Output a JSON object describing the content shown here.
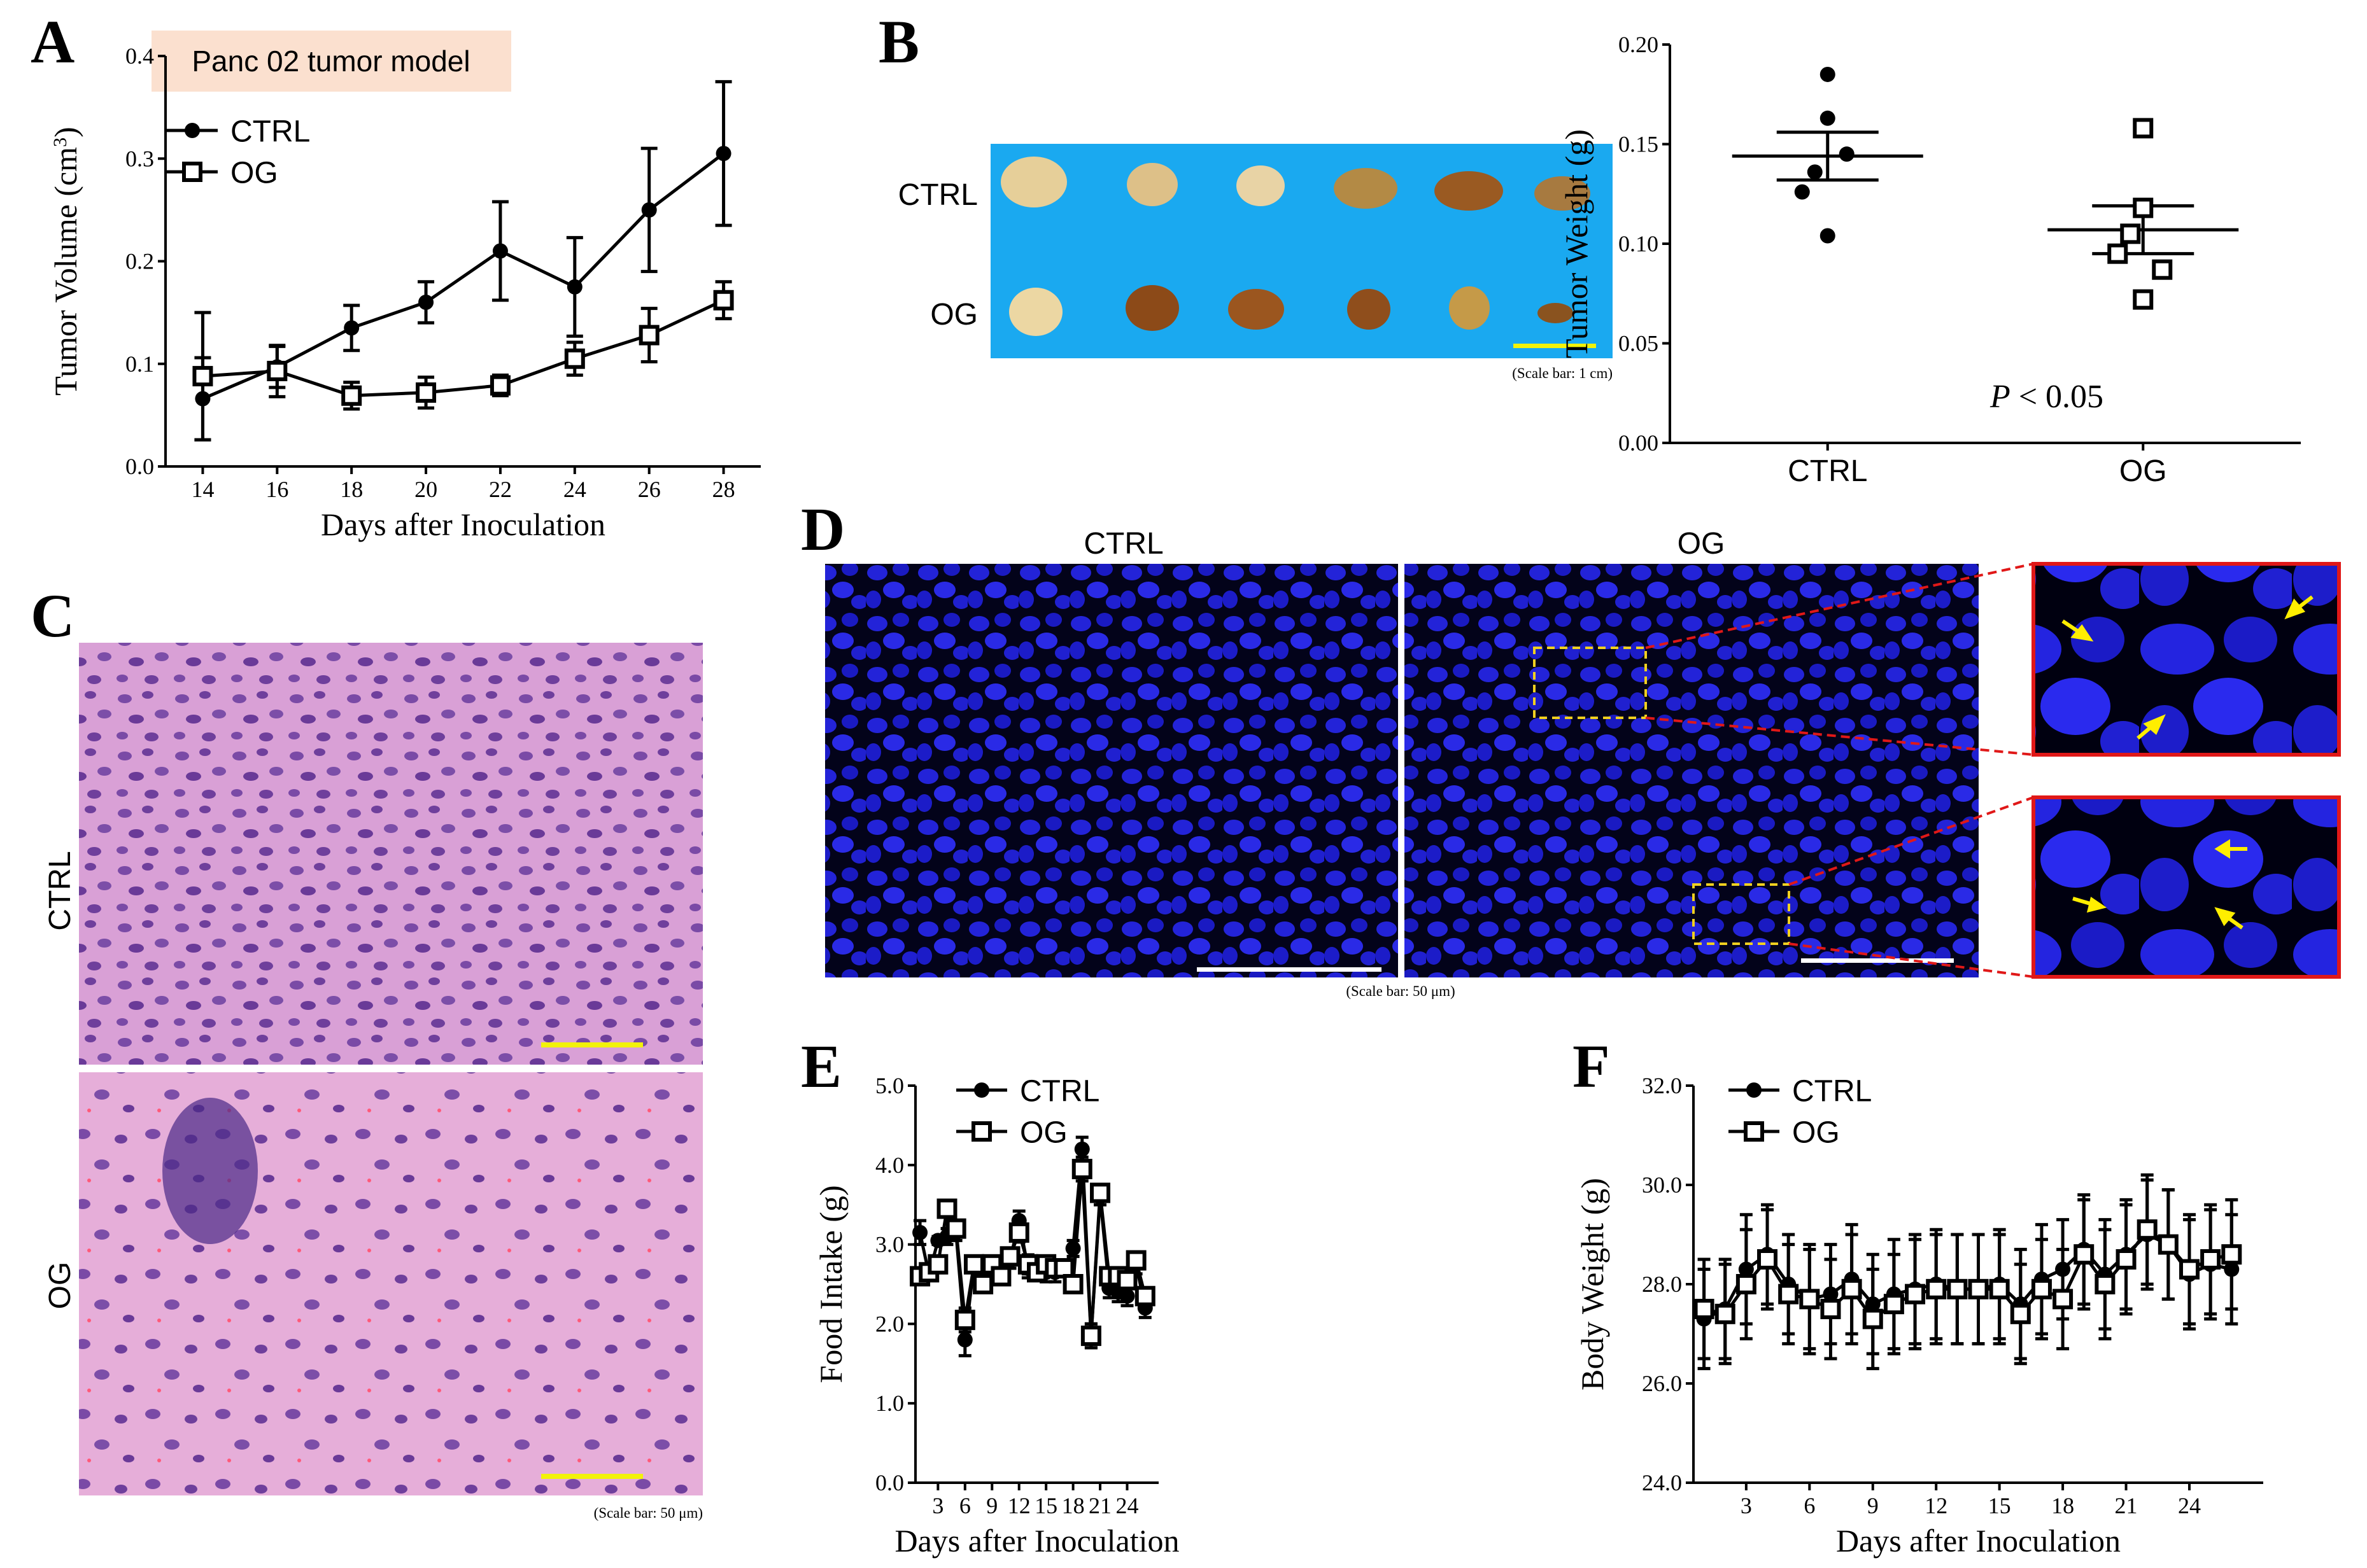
{
  "panels": {
    "a": "A",
    "b": "B",
    "c": "C",
    "d": "D",
    "e": "E",
    "f": "F"
  },
  "colors": {
    "photo_blue": "#1aa9f0",
    "he_pink": "#d898d0",
    "nuclei_blue": "#1f1fd8",
    "inset_red": "#e01818",
    "scalebar_yellow": "#f2f20a"
  },
  "panel_a": {
    "model_label": "Panc 02 tumor model"
  },
  "panel_b": {
    "row_label_ctrl": "CTRL",
    "row_label_og": "OG",
    "scale_note": "(Scale bar: 1 cm)",
    "p_value_italic": "P",
    "p_value_rest": " < 0.05"
  },
  "panel_c": {
    "label_ctrl": "CTRL",
    "label_og": "OG",
    "scale_note": "(Scale bar: 50 μm)"
  },
  "panel_d": {
    "label_ctrl": "CTRL",
    "label_og": "OG",
    "scale_note": "(Scale bar: 50 μm)"
  },
  "chart_data": [
    {
      "id": "A",
      "type": "line",
      "xlabel": "Days after Inoculation",
      "ylabel": "Tumor Volume (cm³)",
      "ylabel_main": "Tumor Volume (cm",
      "ylabel_sup": "3",
      "ylabel_close": ")",
      "x": [
        14,
        16,
        18,
        20,
        22,
        24,
        26,
        28
      ],
      "xlim": [
        13,
        29
      ],
      "ylim": [
        0.0,
        0.4
      ],
      "xticks": [
        "14",
        "16",
        "18",
        "20",
        "22",
        "24",
        "26",
        "28"
      ],
      "yticks": [
        "0.0",
        "0.1",
        "0.2",
        "0.3",
        "0.4"
      ],
      "series": [
        {
          "name": "CTRL",
          "marker": "circle",
          "values": [
            0.066,
            0.097,
            0.135,
            0.16,
            0.21,
            0.175,
            0.25,
            0.305
          ],
          "errors": [
            0.04,
            0.02,
            0.022,
            0.02,
            0.048,
            0.048,
            0.06,
            0.07
          ]
        },
        {
          "name": "OG",
          "marker": "square",
          "values": [
            0.088,
            0.093,
            0.069,
            0.072,
            0.079,
            0.105,
            0.128,
            0.162
          ],
          "errors": [
            0.062,
            0.025,
            0.013,
            0.015,
            0.01,
            0.016,
            0.026,
            0.018
          ]
        }
      ]
    },
    {
      "id": "B",
      "type": "scatter",
      "ylabel": "Tumor Weight (g)",
      "categories": [
        "CTRL",
        "OG"
      ],
      "ylim": [
        0.0,
        0.2
      ],
      "yticks": [
        "0.00",
        "0.05",
        "0.10",
        "0.15",
        "0.20"
      ],
      "series": [
        {
          "name": "CTRL",
          "marker": "circle",
          "points": [
            0.185,
            0.163,
            0.136,
            0.126,
            0.145,
            0.104
          ],
          "mean": 0.144,
          "sem": 0.012
        },
        {
          "name": "OG",
          "marker": "square",
          "points": [
            0.158,
            0.118,
            0.105,
            0.095,
            0.087,
            0.072
          ],
          "mean": 0.107,
          "sem": 0.012
        }
      ]
    },
    {
      "id": "E",
      "type": "line",
      "xlabel": "Days after Inoculation",
      "ylabel": "Food Intake (g)",
      "x": [
        1,
        2,
        3,
        4,
        5,
        6,
        7,
        8,
        9,
        10,
        11,
        12,
        13,
        14,
        15,
        16,
        17,
        18,
        19,
        20,
        21,
        22,
        23,
        24,
        25,
        26
      ],
      "xlim": [
        0.5,
        27.5
      ],
      "ylim": [
        0.0,
        5.0
      ],
      "xtick_values": [
        3,
        6,
        9,
        12,
        15,
        18,
        21,
        24
      ],
      "xticks": [
        "3",
        "6",
        "9",
        "12",
        "15",
        "18",
        "21",
        "24"
      ],
      "yticks": [
        "0.0",
        "1.0",
        "2.0",
        "3.0",
        "4.0",
        "5.0"
      ],
      "series": [
        {
          "name": "CTRL",
          "marker": "circle",
          "values": [
            3.15,
            2.62,
            3.05,
            3.1,
            3.15,
            1.8,
            2.75,
            2.55,
            2.7,
            2.65,
            2.8,
            3.3,
            2.7,
            2.7,
            2.65,
            2.65,
            2.7,
            2.95,
            4.2,
            1.85,
            3.6,
            2.45,
            2.4,
            2.35,
            2.75,
            2.2
          ],
          "errors": [
            0.15,
            0.05,
            0.05,
            0.1,
            0.1,
            0.2,
            0.08,
            0.08,
            0.08,
            0.1,
            0.1,
            0.12,
            0.12,
            0.08,
            0.12,
            0.12,
            0.08,
            0.1,
            0.15,
            0.15,
            0.1,
            0.12,
            0.12,
            0.12,
            0.12,
            0.12
          ]
        },
        {
          "name": "OG",
          "marker": "square",
          "values": [
            2.6,
            2.65,
            2.75,
            3.45,
            3.2,
            2.05,
            2.75,
            2.5,
            2.75,
            2.6,
            2.85,
            3.15,
            2.75,
            2.65,
            2.75,
            2.7,
            2.7,
            2.5,
            3.95,
            1.85,
            3.65,
            2.6,
            2.6,
            2.55,
            2.8,
            2.35
          ],
          "errors": [
            0.1,
            0.05,
            0.05,
            0.08,
            0.1,
            0.15,
            0.08,
            0.08,
            0.08,
            0.1,
            0.1,
            0.12,
            0.12,
            0.08,
            0.1,
            0.1,
            0.08,
            0.08,
            0.15,
            0.15,
            0.1,
            0.1,
            0.1,
            0.1,
            0.1,
            0.1
          ]
        }
      ]
    },
    {
      "id": "F",
      "type": "line",
      "xlabel": "Days after Inoculation",
      "ylabel": "Body Weight (g)",
      "x": [
        1,
        2,
        3,
        4,
        5,
        6,
        7,
        8,
        9,
        10,
        11,
        12,
        13,
        14,
        15,
        16,
        17,
        18,
        19,
        20,
        21,
        22,
        23,
        24,
        25,
        26
      ],
      "xlim": [
        0.5,
        27.5
      ],
      "ylim": [
        24.0,
        32.0
      ],
      "xtick_values": [
        3,
        6,
        9,
        12,
        15,
        18,
        21,
        24
      ],
      "xticks": [
        "3",
        "6",
        "9",
        "12",
        "15",
        "18",
        "21",
        "24"
      ],
      "yticks": [
        "24.0",
        "26.0",
        "28.0",
        "30.0",
        "32.0"
      ],
      "series": [
        {
          "name": "CTRL",
          "marker": "circle",
          "values": [
            27.3,
            27.5,
            28.3,
            28.6,
            28.0,
            27.7,
            27.8,
            28.1,
            27.6,
            27.8,
            27.9,
            28.0,
            27.9,
            27.9,
            28.0,
            27.6,
            28.1,
            28.3,
            28.7,
            28.2,
            28.6,
            29.0,
            28.8,
            28.2,
            28.4,
            28.3
          ],
          "errors": [
            1.0,
            1.0,
            1.1,
            1.0,
            1.0,
            1.1,
            1.0,
            1.1,
            1.0,
            1.1,
            1.1,
            1.1,
            1.1,
            1.1,
            1.1,
            1.1,
            1.1,
            1.0,
            1.1,
            1.1,
            1.1,
            1.1,
            1.1,
            1.1,
            1.1,
            1.1
          ]
        },
        {
          "name": "OG",
          "marker": "square",
          "values": [
            27.5,
            27.4,
            28.0,
            28.5,
            27.8,
            27.7,
            27.5,
            27.9,
            27.3,
            27.6,
            27.8,
            27.9,
            27.9,
            27.9,
            27.9,
            27.4,
            27.9,
            27.7,
            28.6,
            28.0,
            28.5,
            29.1,
            28.8,
            28.3,
            28.5,
            28.6
          ],
          "errors": [
            1.0,
            1.0,
            1.1,
            1.0,
            1.0,
            1.0,
            1.0,
            1.1,
            1.0,
            1.0,
            1.1,
            1.1,
            1.1,
            1.1,
            1.1,
            1.0,
            1.0,
            1.0,
            1.1,
            1.1,
            1.1,
            1.1,
            1.1,
            1.1,
            1.1,
            1.1
          ]
        }
      ]
    }
  ]
}
